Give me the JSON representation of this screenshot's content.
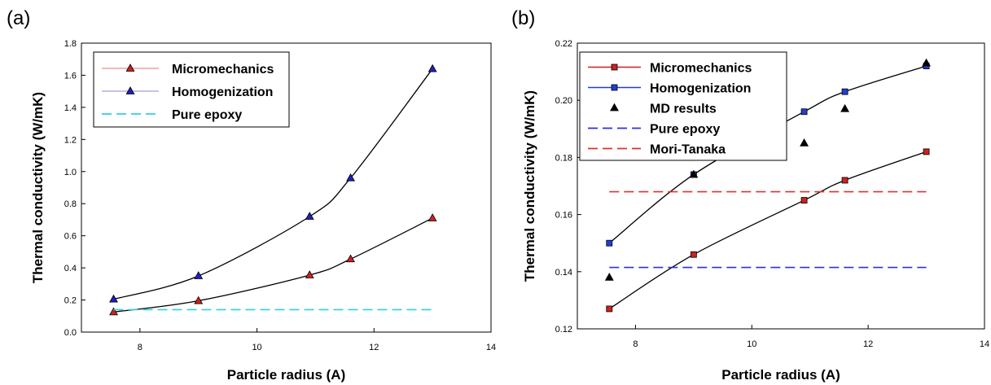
{
  "figure": {
    "panels": [
      "(a)",
      "(b)"
    ]
  },
  "chart_data": [
    {
      "type": "line",
      "panel": "(a)",
      "xlabel": "Particle radius (A)",
      "ylabel": "Thermal conductivity (W/mK)",
      "xlim": [
        7,
        14
      ],
      "ylim": [
        0,
        1.8
      ],
      "xticks": [
        8,
        10,
        12,
        14
      ],
      "yticks": [
        0.0,
        0.2,
        0.4,
        0.6,
        0.8,
        1.0,
        1.2,
        1.4,
        1.6,
        1.8
      ],
      "grid": false,
      "legend": "top-left",
      "series": [
        {
          "name": "Micromechanics",
          "marker": "triangle",
          "color": "#d02020",
          "legend_line_color": "#f0a0a0",
          "x": [
            7.55,
            9.0,
            10.9,
            11.6,
            13.0
          ],
          "y": [
            0.125,
            0.195,
            0.355,
            0.455,
            0.71
          ]
        },
        {
          "name": "Homogenization",
          "marker": "triangle",
          "color": "#2020c0",
          "legend_line_color": "#b0b0e0",
          "x": [
            7.55,
            9.0,
            10.9,
            11.6,
            13.0
          ],
          "y": [
            0.205,
            0.35,
            0.72,
            0.96,
            1.64
          ]
        },
        {
          "name": "Pure epoxy",
          "marker": "none",
          "style": "dashed",
          "color": "#30d0e0",
          "x": [
            7.55,
            13.0
          ],
          "y": [
            0.14,
            0.14
          ]
        }
      ]
    },
    {
      "type": "line",
      "panel": "(b)",
      "xlabel": "Particle radius (A)",
      "ylabel": "Thermal conductivity (W/mK)",
      "xlim": [
        7,
        14
      ],
      "ylim": [
        0.12,
        0.22
      ],
      "xticks": [
        8,
        10,
        12,
        14
      ],
      "yticks": [
        0.12,
        0.14,
        0.16,
        0.18,
        0.2,
        0.22
      ],
      "grid": false,
      "legend": "top-left",
      "series": [
        {
          "name": "Micromechanics",
          "marker": "square",
          "color": "#d02020",
          "x": [
            7.55,
            9.0,
            10.9,
            11.6,
            13.0
          ],
          "y": [
            0.127,
            0.146,
            0.165,
            0.172,
            0.182
          ]
        },
        {
          "name": "Homogenization",
          "marker": "square",
          "color": "#2040d0",
          "x": [
            7.55,
            9.0,
            10.9,
            11.6,
            13.0
          ],
          "y": [
            0.15,
            0.174,
            0.196,
            0.203,
            0.212
          ]
        },
        {
          "name": "MD results",
          "marker": "triangle-black",
          "color": "#000000",
          "x": [
            7.55,
            9.0,
            10.9,
            11.6,
            13.0
          ],
          "y": [
            0.138,
            0.174,
            0.185,
            0.197,
            0.213
          ]
        },
        {
          "name": "Pure epoxy",
          "marker": "none",
          "style": "dashed",
          "color": "#3030e0",
          "x": [
            7.55,
            13.0
          ],
          "y": [
            0.1415,
            0.1415
          ]
        },
        {
          "name": "Mori-Tanaka",
          "marker": "none",
          "style": "dashed",
          "color": "#e03030",
          "x": [
            7.55,
            13.0
          ],
          "y": [
            0.168,
            0.168
          ]
        }
      ]
    }
  ]
}
